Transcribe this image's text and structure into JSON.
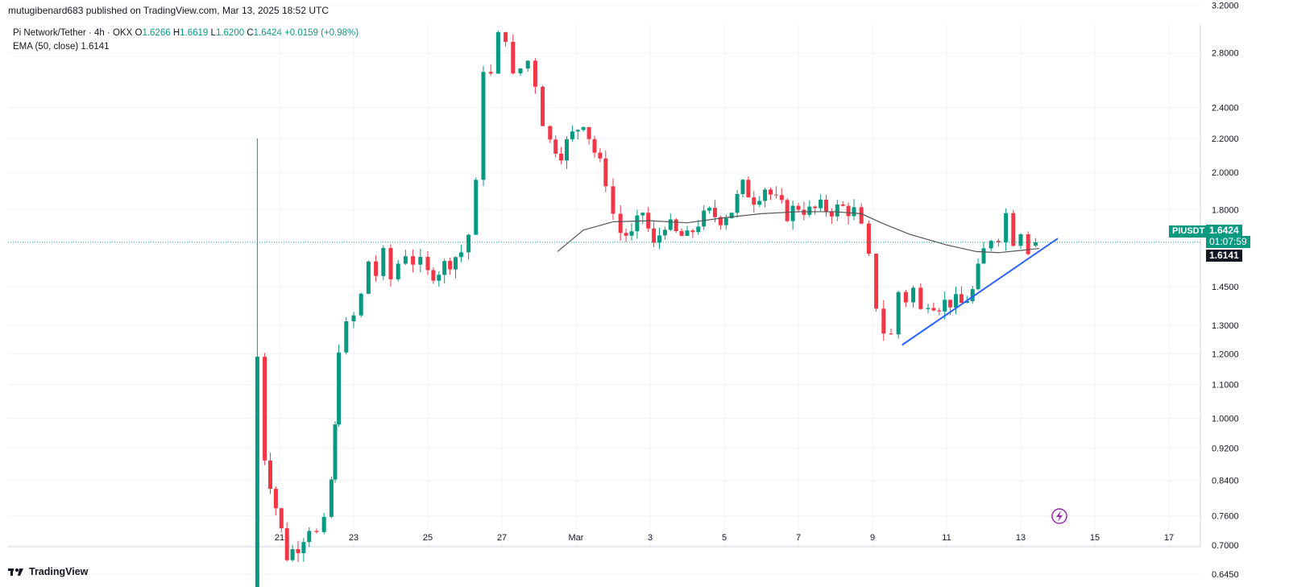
{
  "header": {
    "published_by": "mutugibenard683 published on TradingView.com, Mar 13, 2025 18:52 UTC"
  },
  "legend": {
    "symbol": "Pi Network/Tether · 4h · OKX",
    "o_label": "O",
    "o_value": "1.6266",
    "h_label": "H",
    "h_value": "1.6619",
    "l_label": "L",
    "l_value": "1.6200",
    "c_label": "C",
    "c_value": "1.6424",
    "change": "+0.0159 (+0.98%)",
    "ema_label": "EMA (50, close)",
    "ema_value": "1.6141"
  },
  "price_tags": {
    "symbol_tag": "PIUSDT",
    "last_price": "1.6424",
    "countdown": "01:07:59",
    "ema_price": "1.6141"
  },
  "footer": {
    "brand": "TradingView",
    "logo": "tradingview-logo-icon"
  },
  "colors": {
    "up": "#089981",
    "down": "#f23645",
    "ema": "#555555",
    "trendline": "#2962ff",
    "accent": "#9c27b0"
  },
  "chart_data": {
    "type": "candlestick",
    "scale": "log",
    "ylim": [
      0.6,
      3.4
    ],
    "y_ticks": [
      3.2,
      2.8,
      2.4,
      2.2,
      2.0,
      1.8,
      1.45,
      1.3,
      1.2,
      1.1,
      1.0,
      0.92,
      0.84,
      0.76,
      0.7,
      0.645
    ],
    "y_tick_labels": [
      "3.2000",
      "2.8000",
      "2.4000",
      "2.2000",
      "2.0000",
      "1.8000",
      "1.4500",
      "1.3000",
      "1.2000",
      "1.1000",
      "1.0000",
      "0.9200",
      "0.8400",
      "0.7600",
      "0.7000",
      "0.6450"
    ],
    "x_ticks": [
      {
        "label": "21",
        "day": 21
      },
      {
        "label": "23",
        "day": 23
      },
      {
        "label": "25",
        "day": 25
      },
      {
        "label": "27",
        "day": 27
      },
      {
        "label": "Mar",
        "day": 29
      },
      {
        "label": "3",
        "day": 31
      },
      {
        "label": "5",
        "day": 33
      },
      {
        "label": "7",
        "day": 35
      },
      {
        "label": "9",
        "day": 37
      },
      {
        "label": "11",
        "day": 39
      },
      {
        "label": "13",
        "day": 41
      },
      {
        "label": "15",
        "day": 43
      },
      {
        "label": "17",
        "day": 45
      }
    ],
    "anchor_closes": [
      [
        20.4,
        1.19
      ],
      [
        20.6,
        0.9
      ],
      [
        20.9,
        0.78
      ],
      [
        21.2,
        0.68
      ],
      [
        21.5,
        0.7
      ],
      [
        21.8,
        0.74
      ],
      [
        22.0,
        0.72
      ],
      [
        22.2,
        0.74
      ],
      [
        22.4,
        0.84
      ],
      [
        22.5,
        0.97
      ],
      [
        22.6,
        1.23
      ],
      [
        22.8,
        1.29
      ],
      [
        23.0,
        1.33
      ],
      [
        23.2,
        1.41
      ],
      [
        23.4,
        1.56
      ],
      [
        23.6,
        1.5
      ],
      [
        23.8,
        1.58
      ],
      [
        24.0,
        1.48
      ],
      [
        24.2,
        1.55
      ],
      [
        24.4,
        1.6
      ],
      [
        24.6,
        1.56
      ],
      [
        24.8,
        1.54
      ],
      [
        25.0,
        1.5
      ],
      [
        25.3,
        1.52
      ],
      [
        25.6,
        1.56
      ],
      [
        25.9,
        1.6
      ],
      [
        26.1,
        1.68
      ],
      [
        26.3,
        1.92
      ],
      [
        26.5,
        2.7
      ],
      [
        26.7,
        2.62
      ],
      [
        26.9,
        2.92
      ],
      [
        27.1,
        2.95
      ],
      [
        27.3,
        2.6
      ],
      [
        27.5,
        2.68
      ],
      [
        27.7,
        2.74
      ],
      [
        27.9,
        2.58
      ],
      [
        28.1,
        2.32
      ],
      [
        28.3,
        2.18
      ],
      [
        28.6,
        2.12
      ],
      [
        28.9,
        2.22
      ],
      [
        29.2,
        2.32
      ],
      [
        29.5,
        2.12
      ],
      [
        29.8,
        1.96
      ],
      [
        30.0,
        1.78
      ],
      [
        30.2,
        1.69
      ],
      [
        30.5,
        1.67
      ],
      [
        30.8,
        1.79
      ],
      [
        31.1,
        1.62
      ],
      [
        31.4,
        1.74
      ],
      [
        31.7,
        1.68
      ],
      [
        32.0,
        1.66
      ],
      [
        32.3,
        1.74
      ],
      [
        32.6,
        1.78
      ],
      [
        32.9,
        1.76
      ],
      [
        33.2,
        1.8
      ],
      [
        33.5,
        1.92
      ],
      [
        33.8,
        1.86
      ],
      [
        34.1,
        1.92
      ],
      [
        34.4,
        1.84
      ],
      [
        34.7,
        1.78
      ],
      [
        35.0,
        1.82
      ],
      [
        35.3,
        1.79
      ],
      [
        35.6,
        1.81
      ],
      [
        35.9,
        1.8
      ],
      [
        36.2,
        1.81
      ],
      [
        36.5,
        1.79
      ],
      [
        36.7,
        1.7
      ],
      [
        36.9,
        1.56
      ],
      [
        37.1,
        1.38
      ],
      [
        37.3,
        1.28
      ],
      [
        37.5,
        1.26
      ],
      [
        37.7,
        1.43
      ],
      [
        37.9,
        1.4
      ],
      [
        38.1,
        1.44
      ],
      [
        38.3,
        1.35
      ],
      [
        38.5,
        1.4
      ],
      [
        38.8,
        1.38
      ],
      [
        39.1,
        1.39
      ],
      [
        39.4,
        1.38
      ],
      [
        39.7,
        1.43
      ],
      [
        40.0,
        1.6
      ],
      [
        40.2,
        1.67
      ],
      [
        40.4,
        1.68
      ],
      [
        40.6,
        1.78
      ],
      [
        40.8,
        1.66
      ],
      [
        41.0,
        1.71
      ],
      [
        41.2,
        1.62
      ],
      [
        41.4,
        1.6424
      ]
    ],
    "ema": {
      "name": "EMA (50, close)",
      "points": [
        [
          28.5,
          1.6
        ],
        [
          29.2,
          1.7
        ],
        [
          30.0,
          1.74
        ],
        [
          31.0,
          1.745
        ],
        [
          32.0,
          1.735
        ],
        [
          33.0,
          1.76
        ],
        [
          34.0,
          1.78
        ],
        [
          35.0,
          1.79
        ],
        [
          36.0,
          1.79
        ],
        [
          36.7,
          1.78
        ],
        [
          37.3,
          1.73
        ],
        [
          38.0,
          1.68
        ],
        [
          39.0,
          1.63
        ],
        [
          39.8,
          1.6
        ],
        [
          40.4,
          1.595
        ],
        [
          41.0,
          1.605
        ],
        [
          41.5,
          1.6141
        ]
      ]
    },
    "trendline": {
      "points": [
        [
          37.8,
          1.23
        ],
        [
          42.0,
          1.66
        ]
      ]
    }
  }
}
